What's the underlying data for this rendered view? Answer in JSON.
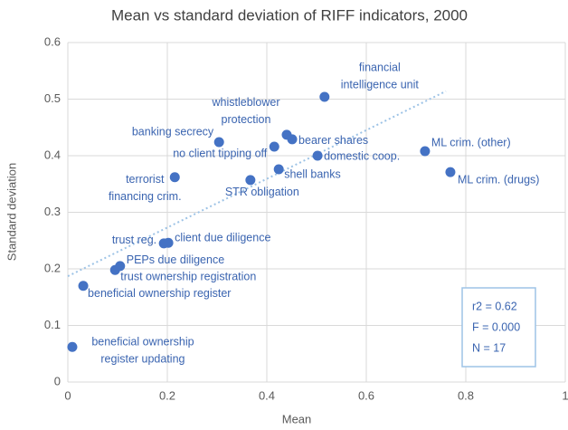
{
  "chart_data": {
    "type": "scatter",
    "title": "Mean vs standard deviation of RIFF indicators, 2000",
    "x_label": "Mean",
    "y_label": "Standard deviation",
    "x": [
      0.516,
      0.44,
      0.304,
      0.415,
      0.451,
      0.502,
      0.424,
      0.367,
      0.215,
      0.718,
      0.769,
      0.193,
      0.202,
      0.105,
      0.095,
      0.031,
      0.009
    ],
    "values": [
      0.504,
      0.437,
      0.424,
      0.416,
      0.429,
      0.4,
      0.376,
      0.357,
      0.362,
      0.408,
      0.371,
      0.245,
      0.246,
      0.205,
      0.198,
      0.17,
      0.062
    ],
    "labels": [
      [
        "financial",
        "intelligence unit"
      ],
      [
        "whistleblower",
        "protection"
      ],
      [
        "banking secrecy"
      ],
      [
        "no client tipping off"
      ],
      [
        "bearer shares"
      ],
      [
        "domestic coop."
      ],
      [
        "shell banks"
      ],
      [
        "STR obligation"
      ],
      [
        "terrorist",
        "financing crim."
      ],
      [
        "ML crim. (other)"
      ],
      [
        "ML crim. (drugs)"
      ],
      [
        "trust reg."
      ],
      [
        "client due diligence"
      ],
      [
        "PEPs due diligence"
      ],
      [
        "trust ownership registration"
      ],
      [
        "beneficial ownership register"
      ],
      [
        "beneficial ownership",
        "register updating"
      ]
    ],
    "color": "#4472c4",
    "trendline": {
      "x": [
        0,
        0.76
      ],
      "values": [
        0.187,
        0.514
      ]
    },
    "annotation": [
      "r2 =  0.62",
      "F = 0.000",
      "N = 17"
    ],
    "xlim": [
      0,
      1
    ],
    "xticks": [
      0,
      0.2,
      0.4,
      0.6,
      0.8,
      1
    ],
    "ylim": [
      0,
      0.6
    ],
    "yticks": [
      0,
      0.1,
      0.2,
      0.3,
      0.4,
      0.5,
      0.6
    ],
    "grid": true
  }
}
